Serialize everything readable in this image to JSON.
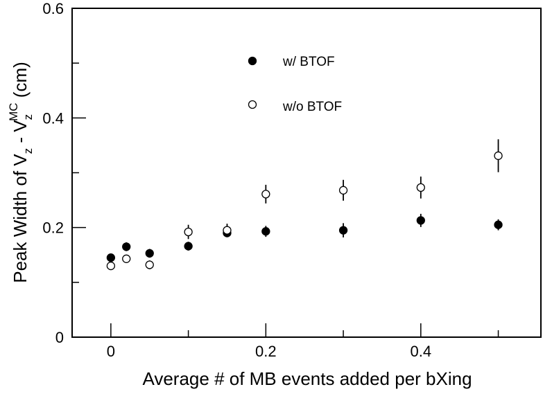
{
  "chart_data": {
    "type": "scatter",
    "xlabel": "Average # of MB events added per bXing",
    "ylabel": {
      "prefix": "Peak Width of V",
      "sub1": "z",
      "mid": " - V",
      "sub2": "z",
      "sup2": "MC",
      "suffix": " (cm)"
    },
    "xlim": [
      -0.05,
      0.555
    ],
    "ylim": [
      0,
      0.6
    ],
    "x_ticks": [
      {
        "value": 0,
        "label": "0"
      },
      {
        "value": 0.2,
        "label": "0.2"
      },
      {
        "value": 0.4,
        "label": "0.4"
      }
    ],
    "x_minor_ticks": [
      0.1,
      0.3,
      0.5
    ],
    "y_ticks": [
      {
        "value": 0,
        "label": "0"
      },
      {
        "value": 0.2,
        "label": "0.2"
      },
      {
        "value": 0.4,
        "label": "0.4"
      },
      {
        "value": 0.6,
        "label": "0.6"
      }
    ],
    "y_minor_ticks": [
      0.1,
      0.3,
      0.5
    ],
    "grid": false,
    "legend_position": "top-center",
    "series": [
      {
        "name": "w/ BTOF",
        "marker": "filled-circle",
        "color": "#000000",
        "points": [
          {
            "x": 0,
            "y": 0.145,
            "err": 0.006
          },
          {
            "x": 0.02,
            "y": 0.165,
            "err": 0.008
          },
          {
            "x": 0.05,
            "y": 0.153,
            "err": 0.008
          },
          {
            "x": 0.1,
            "y": 0.166,
            "err": 0.008
          },
          {
            "x": 0.15,
            "y": 0.19,
            "err": 0.007
          },
          {
            "x": 0.2,
            "y": 0.193,
            "err": 0.01
          },
          {
            "x": 0.3,
            "y": 0.195,
            "err": 0.013
          },
          {
            "x": 0.4,
            "y": 0.213,
            "err": 0.012
          },
          {
            "x": 0.5,
            "y": 0.205,
            "err": 0.01
          }
        ]
      },
      {
        "name": "w/o BTOF",
        "marker": "open-circle",
        "color": "#000000",
        "points": [
          {
            "x": 0,
            "y": 0.13,
            "err": 0.005
          },
          {
            "x": 0.02,
            "y": 0.143,
            "err": 0.006
          },
          {
            "x": 0.05,
            "y": 0.132,
            "err": 0.008
          },
          {
            "x": 0.1,
            "y": 0.192,
            "err": 0.013
          },
          {
            "x": 0.15,
            "y": 0.195,
            "err": 0.012
          },
          {
            "x": 0.2,
            "y": 0.261,
            "err": 0.017
          },
          {
            "x": 0.3,
            "y": 0.268,
            "err": 0.019
          },
          {
            "x": 0.4,
            "y": 0.273,
            "err": 0.02
          },
          {
            "x": 0.5,
            "y": 0.331,
            "err": 0.03
          }
        ]
      }
    ]
  }
}
